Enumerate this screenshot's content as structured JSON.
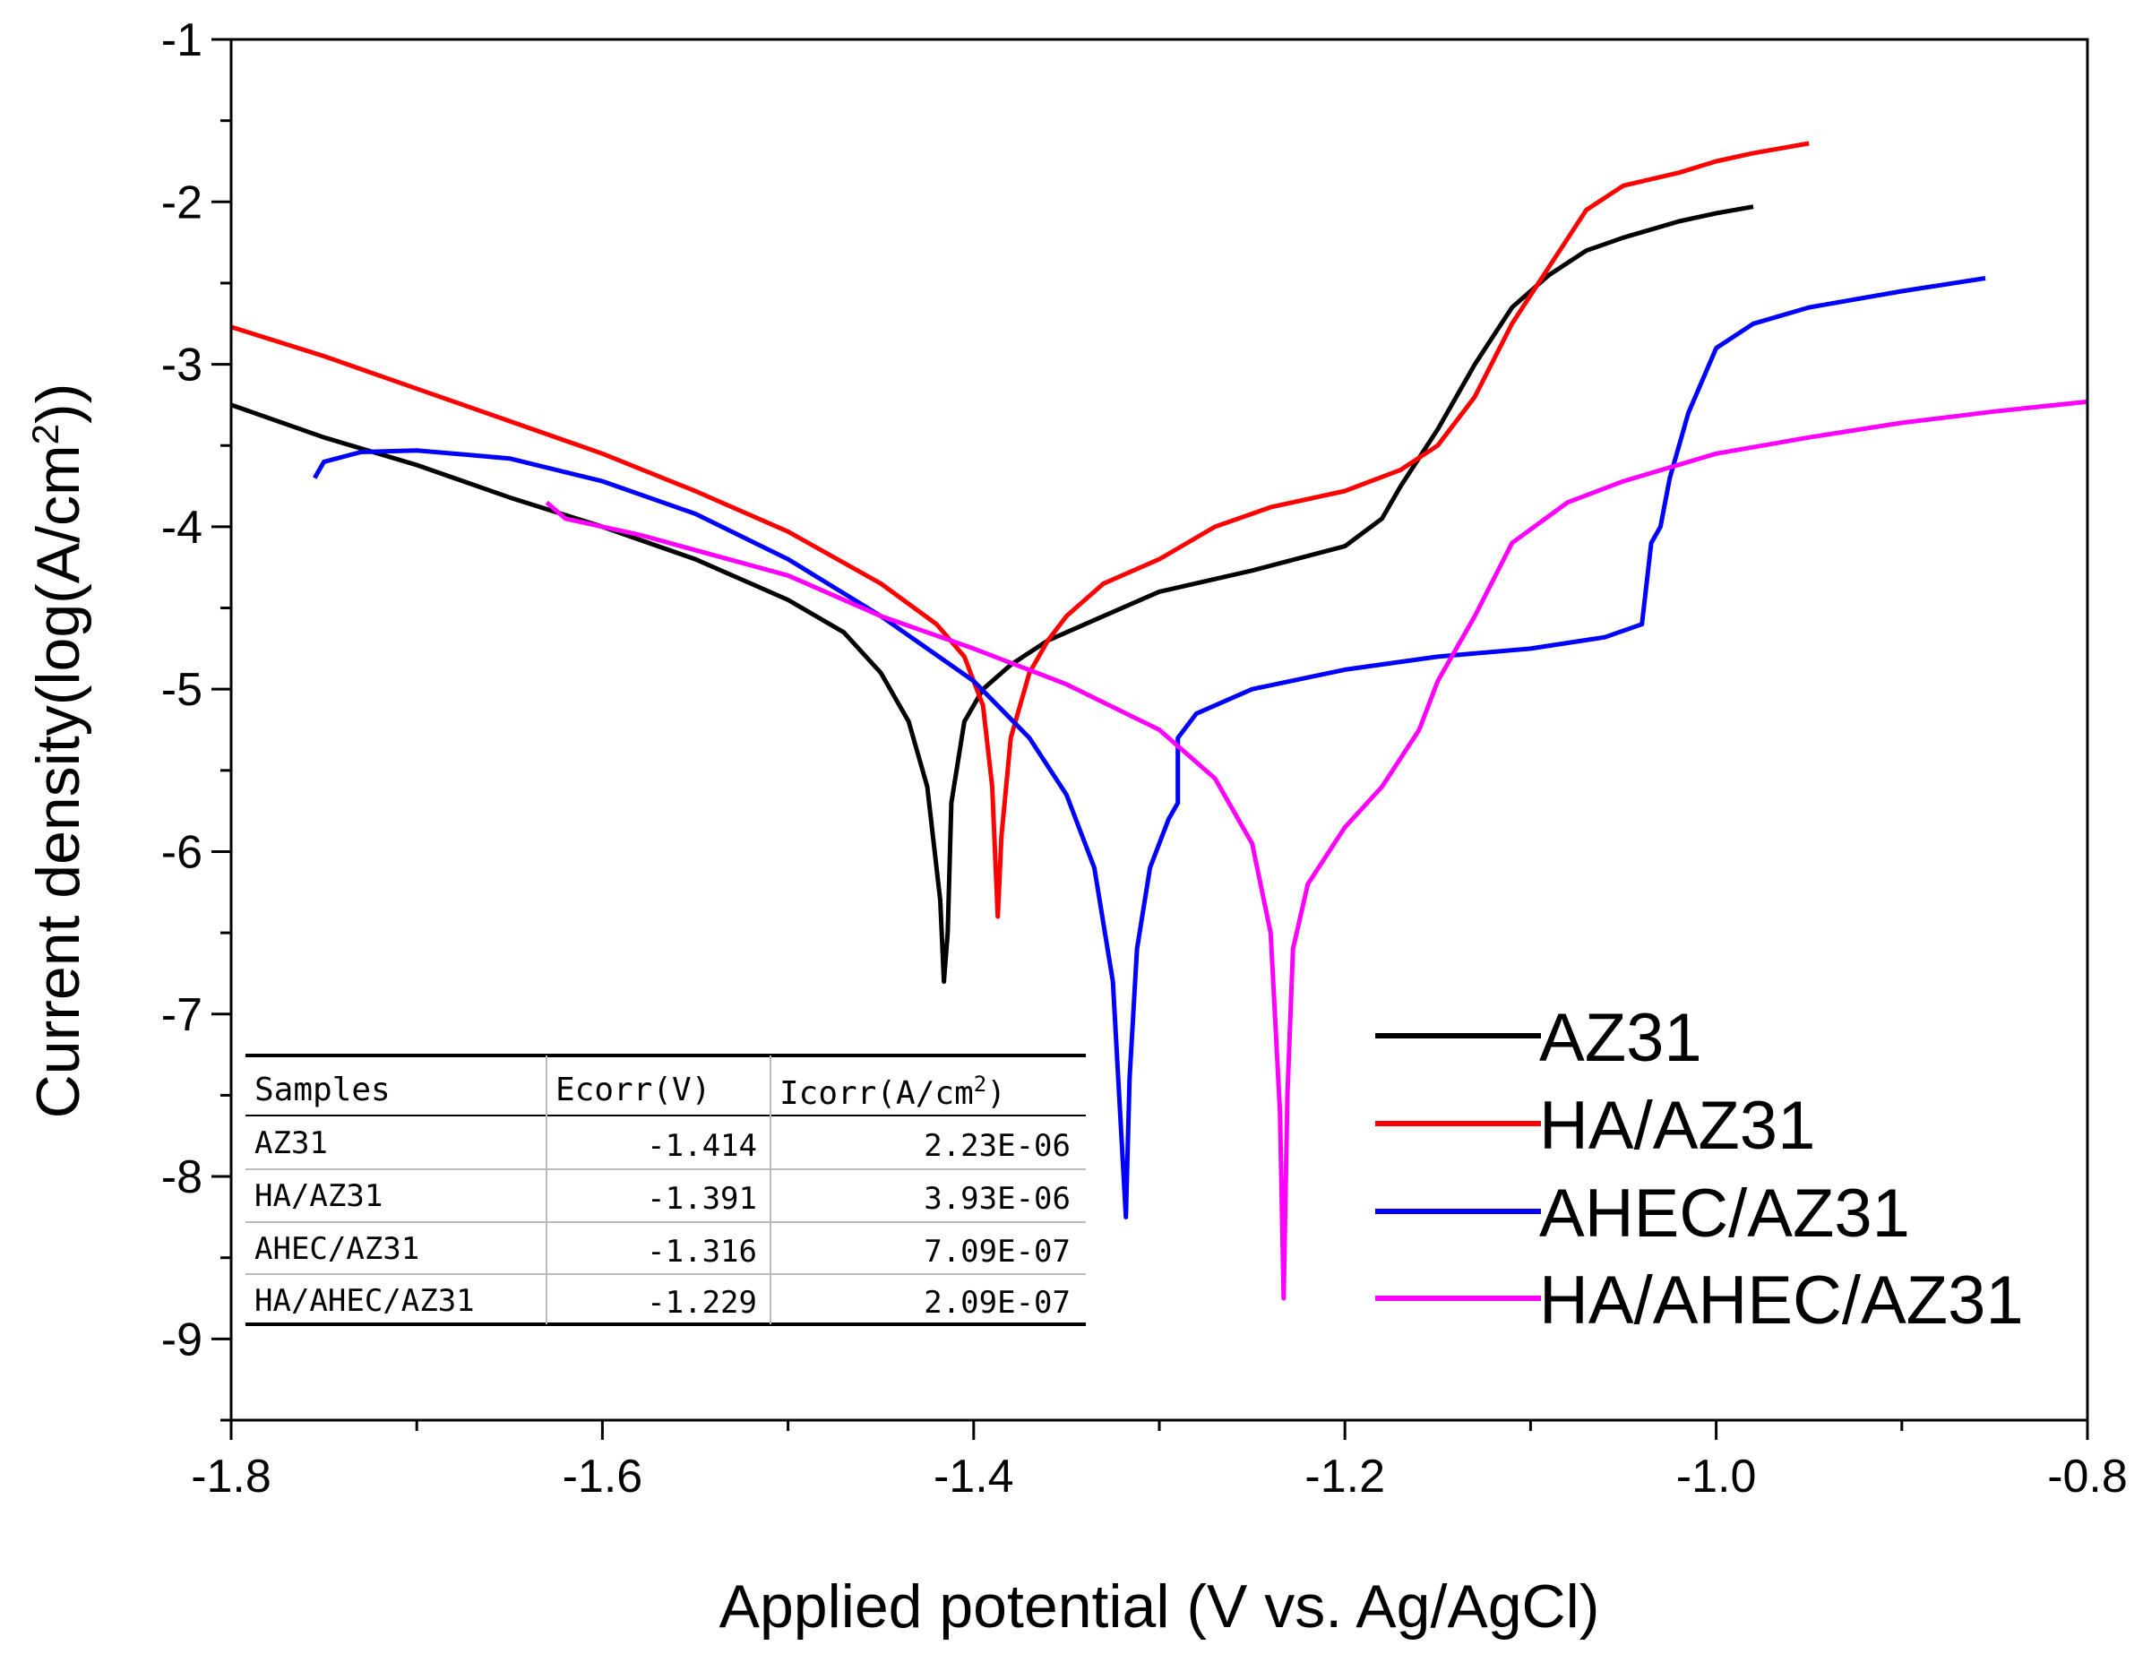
{
  "chart_data": {
    "type": "line",
    "title": "",
    "xlabel": "Applied potential (V vs. Ag/AgCl)",
    "ylabel_main": "Current density(log(A/cm",
    "ylabel_sup": "2",
    "ylabel_close": "))",
    "xlim": [
      -1.8,
      -0.8
    ],
    "ylim": [
      -9.5,
      -1
    ],
    "x_ticks": [
      -1.8,
      -1.6,
      -1.4,
      -1.2,
      -1.0,
      -0.8
    ],
    "x_tick_labels": [
      "-1.8",
      "-1.6",
      "-1.4",
      "-1.2",
      "-1.0",
      "-0.8"
    ],
    "y_ticks": [
      -1,
      -2,
      -3,
      -4,
      -5,
      -6,
      -7,
      -8,
      -9
    ],
    "y_tick_labels": [
      "-1",
      "-2",
      "-3",
      "-4",
      "-5",
      "-6",
      "-7",
      "-8",
      "-9"
    ],
    "legend_position": "bottom-right",
    "series": [
      {
        "name": "AZ31",
        "color": "#000000",
        "points": [
          [
            -1.8,
            -3.25
          ],
          [
            -1.75,
            -3.45
          ],
          [
            -1.7,
            -3.62
          ],
          [
            -1.65,
            -3.82
          ],
          [
            -1.6,
            -4.0
          ],
          [
            -1.55,
            -4.2
          ],
          [
            -1.5,
            -4.45
          ],
          [
            -1.47,
            -4.65
          ],
          [
            -1.45,
            -4.9
          ],
          [
            -1.435,
            -5.2
          ],
          [
            -1.425,
            -5.6
          ],
          [
            -1.418,
            -6.3
          ],
          [
            -1.416,
            -6.8
          ],
          [
            -1.414,
            -6.5
          ],
          [
            -1.412,
            -5.7
          ],
          [
            -1.405,
            -5.2
          ],
          [
            -1.395,
            -5.0
          ],
          [
            -1.38,
            -4.85
          ],
          [
            -1.36,
            -4.7
          ],
          [
            -1.33,
            -4.55
          ],
          [
            -1.3,
            -4.4
          ],
          [
            -1.25,
            -4.27
          ],
          [
            -1.2,
            -4.12
          ],
          [
            -1.18,
            -3.95
          ],
          [
            -1.17,
            -3.75
          ],
          [
            -1.15,
            -3.4
          ],
          [
            -1.13,
            -3.0
          ],
          [
            -1.11,
            -2.65
          ],
          [
            -1.09,
            -2.45
          ],
          [
            -1.07,
            -2.3
          ],
          [
            -1.05,
            -2.22
          ],
          [
            -1.02,
            -2.12
          ],
          [
            -1.0,
            -2.07
          ],
          [
            -0.98,
            -2.03
          ]
        ]
      },
      {
        "name": "HA/AZ31",
        "color": "#ff0000",
        "points": [
          [
            -1.8,
            -2.77
          ],
          [
            -1.75,
            -2.95
          ],
          [
            -1.7,
            -3.15
          ],
          [
            -1.65,
            -3.35
          ],
          [
            -1.6,
            -3.55
          ],
          [
            -1.55,
            -3.78
          ],
          [
            -1.5,
            -4.03
          ],
          [
            -1.45,
            -4.35
          ],
          [
            -1.42,
            -4.6
          ],
          [
            -1.405,
            -4.8
          ],
          [
            -1.395,
            -5.1
          ],
          [
            -1.39,
            -5.6
          ],
          [
            -1.387,
            -6.4
          ],
          [
            -1.385,
            -5.9
          ],
          [
            -1.38,
            -5.3
          ],
          [
            -1.37,
            -4.9
          ],
          [
            -1.36,
            -4.7
          ],
          [
            -1.35,
            -4.55
          ],
          [
            -1.33,
            -4.35
          ],
          [
            -1.3,
            -4.2
          ],
          [
            -1.27,
            -4.0
          ],
          [
            -1.24,
            -3.88
          ],
          [
            -1.2,
            -3.78
          ],
          [
            -1.17,
            -3.65
          ],
          [
            -1.15,
            -3.5
          ],
          [
            -1.13,
            -3.2
          ],
          [
            -1.11,
            -2.75
          ],
          [
            -1.09,
            -2.4
          ],
          [
            -1.07,
            -2.05
          ],
          [
            -1.05,
            -1.9
          ],
          [
            -1.02,
            -1.82
          ],
          [
            -1.0,
            -1.75
          ],
          [
            -0.98,
            -1.7
          ],
          [
            -0.95,
            -1.64
          ]
        ]
      },
      {
        "name": "AHEC/AZ31",
        "color": "#0000ff",
        "points": [
          [
            -1.755,
            -3.7
          ],
          [
            -1.75,
            -3.6
          ],
          [
            -1.73,
            -3.54
          ],
          [
            -1.7,
            -3.53
          ],
          [
            -1.65,
            -3.58
          ],
          [
            -1.6,
            -3.72
          ],
          [
            -1.55,
            -3.92
          ],
          [
            -1.5,
            -4.2
          ],
          [
            -1.45,
            -4.55
          ],
          [
            -1.4,
            -4.95
          ],
          [
            -1.37,
            -5.3
          ],
          [
            -1.35,
            -5.65
          ],
          [
            -1.335,
            -6.1
          ],
          [
            -1.325,
            -6.8
          ],
          [
            -1.318,
            -8.25
          ],
          [
            -1.316,
            -7.4
          ],
          [
            -1.312,
            -6.6
          ],
          [
            -1.305,
            -6.1
          ],
          [
            -1.295,
            -5.8
          ],
          [
            -1.29,
            -5.7
          ],
          [
            -1.29,
            -5.3
          ],
          [
            -1.28,
            -5.15
          ],
          [
            -1.25,
            -5.0
          ],
          [
            -1.2,
            -4.88
          ],
          [
            -1.15,
            -4.8
          ],
          [
            -1.1,
            -4.75
          ],
          [
            -1.06,
            -4.68
          ],
          [
            -1.04,
            -4.6
          ],
          [
            -1.035,
            -4.1
          ],
          [
            -1.03,
            -4.0
          ],
          [
            -1.025,
            -3.7
          ],
          [
            -1.02,
            -3.5
          ],
          [
            -1.015,
            -3.3
          ],
          [
            -1.0,
            -2.9
          ],
          [
            -0.98,
            -2.75
          ],
          [
            -0.95,
            -2.65
          ],
          [
            -0.9,
            -2.55
          ],
          [
            -0.855,
            -2.47
          ]
        ]
      },
      {
        "name": "HA/AHEC/AZ31",
        "color": "#ff00ff",
        "points": [
          [
            -1.63,
            -3.85
          ],
          [
            -1.62,
            -3.95
          ],
          [
            -1.58,
            -4.05
          ],
          [
            -1.5,
            -4.3
          ],
          [
            -1.45,
            -4.55
          ],
          [
            -1.4,
            -4.75
          ],
          [
            -1.35,
            -4.97
          ],
          [
            -1.3,
            -5.25
          ],
          [
            -1.27,
            -5.55
          ],
          [
            -1.25,
            -5.95
          ],
          [
            -1.24,
            -6.5
          ],
          [
            -1.235,
            -7.6
          ],
          [
            -1.233,
            -8.75
          ],
          [
            -1.231,
            -7.5
          ],
          [
            -1.228,
            -6.6
          ],
          [
            -1.22,
            -6.2
          ],
          [
            -1.2,
            -5.85
          ],
          [
            -1.18,
            -5.6
          ],
          [
            -1.16,
            -5.25
          ],
          [
            -1.15,
            -4.95
          ],
          [
            -1.13,
            -4.55
          ],
          [
            -1.11,
            -4.1
          ],
          [
            -1.08,
            -3.85
          ],
          [
            -1.05,
            -3.72
          ],
          [
            -1.0,
            -3.55
          ],
          [
            -0.95,
            -3.45
          ],
          [
            -0.9,
            -3.36
          ],
          [
            -0.85,
            -3.29
          ],
          [
            -0.8,
            -3.23
          ]
        ]
      }
    ]
  },
  "table": {
    "headers": [
      "Samples",
      "Ecorr(V)",
      "Icorr(A/cm",
      "2",
      ")"
    ],
    "rows": [
      [
        "AZ31",
        "-1.414",
        "2.23E-06"
      ],
      [
        "HA/AZ31",
        "-1.391",
        "3.93E-06"
      ],
      [
        "AHEC/AZ31",
        "-1.316",
        "7.09E-07"
      ],
      [
        "HA/AHEC/AZ31",
        "-1.229",
        "2.09E-07"
      ]
    ]
  }
}
